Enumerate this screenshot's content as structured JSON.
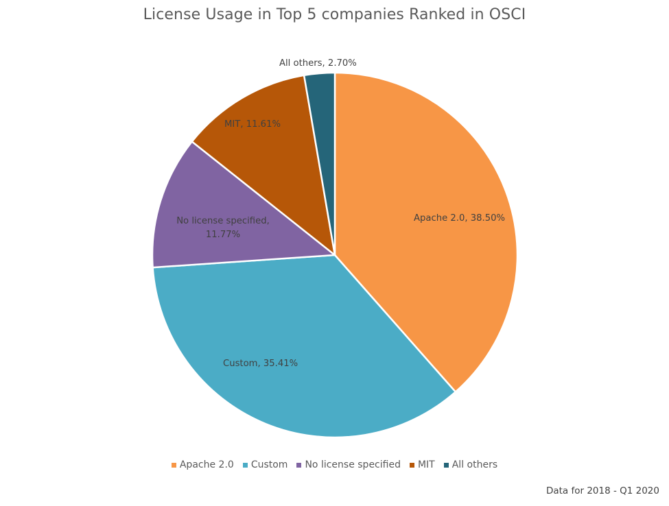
{
  "title": "License Usage in Top 5 companies Ranked in OSCI",
  "footnote": "Data for 2018 - Q1 2020",
  "legend": [
    {
      "label": "Apache 2.0",
      "color": "#F79646"
    },
    {
      "label": "Custom",
      "color": "#4BACC6"
    },
    {
      "label": "No license specified",
      "color": "#8064A2"
    },
    {
      "label": "MIT",
      "color": "#B65708"
    },
    {
      "label": "All others",
      "color": "#256579"
    }
  ],
  "labels": {
    "apache": "Apache 2.0, 38.50%",
    "custom": "Custom, 35.41%",
    "nolicense_line1": "No license specified,",
    "nolicense_line2": "11.77%",
    "mit": "MIT, 11.61%",
    "others": "All others, 2.70%"
  },
  "chart_data": {
    "type": "pie",
    "title": "License Usage in Top 5 companies Ranked in OSCI",
    "categories": [
      "Apache 2.0",
      "Custom",
      "No license specified",
      "MIT",
      "All others"
    ],
    "values": [
      38.5,
      35.41,
      11.77,
      11.61,
      2.7
    ],
    "unit": "%",
    "colors": [
      "#F79646",
      "#4BACC6",
      "#8064A2",
      "#B65708",
      "#256579"
    ],
    "data_labels": [
      "Apache 2.0, 38.50%",
      "Custom, 35.41%",
      "No license specified, 11.77%",
      "MIT, 11.61%",
      "All others, 2.70%"
    ],
    "start_angle": "12 o'clock, clockwise",
    "legend_position": "bottom",
    "annotation": "Data for 2018 - Q1 2020"
  }
}
